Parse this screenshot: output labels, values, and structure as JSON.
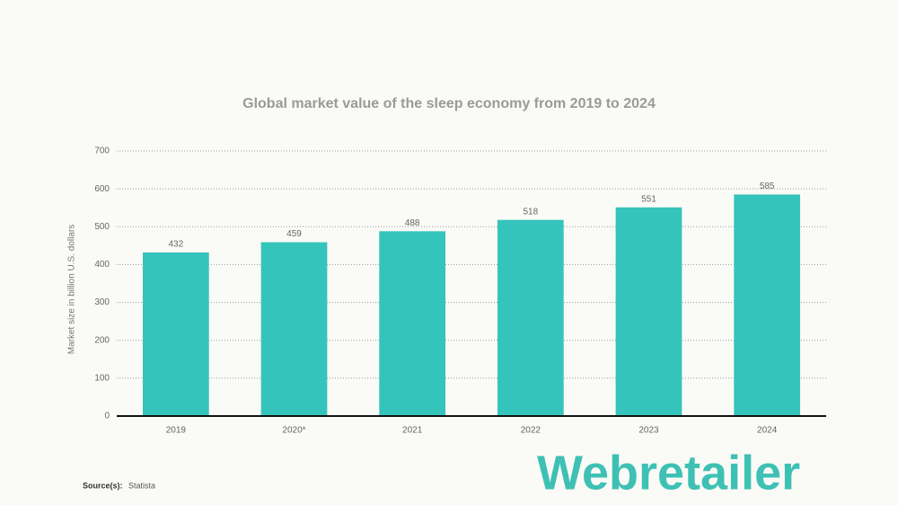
{
  "chart_data": {
    "type": "bar",
    "title": "Global market value of the sleep economy from 2019 to 2024",
    "y_label": "Market size in billion U.S. dollars",
    "categories": [
      "2019",
      "2020*",
      "2021",
      "2022",
      "2023",
      "2024"
    ],
    "values": [
      432,
      459,
      488,
      518,
      551,
      585
    ],
    "color": "#35c4bb",
    "ylim": [
      0,
      700
    ],
    "yticks": [
      0,
      100,
      200,
      300,
      400,
      500,
      600,
      700
    ],
    "grid": true,
    "source_label": "Source(s):",
    "source": "Statista",
    "logo": "Webretailer"
  }
}
